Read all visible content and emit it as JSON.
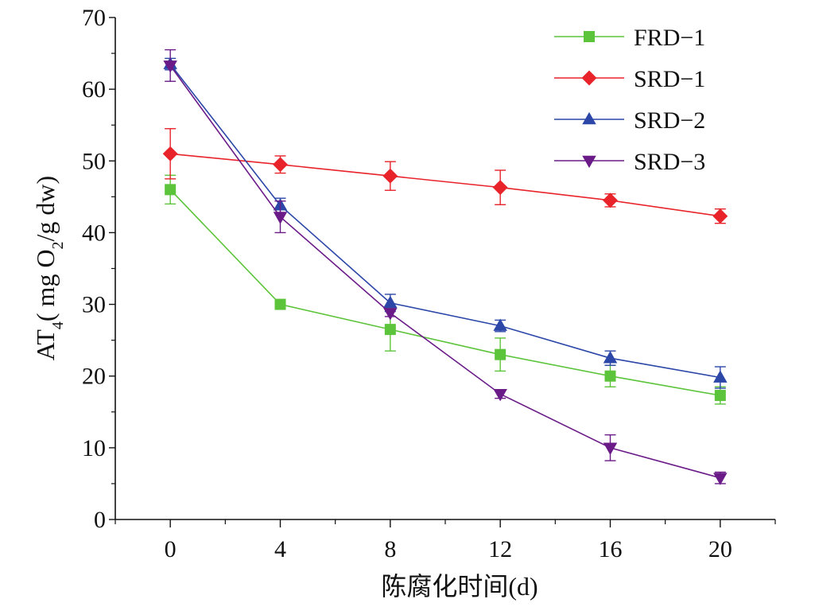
{
  "chart_data": {
    "type": "line",
    "title": "",
    "xlabel": "陈腐化时间(d)",
    "ylabel": {
      "main": "AT",
      "sub": "4",
      "unit_open": "( mg O",
      "unit_sub": "2",
      "unit_close": "/g dw)"
    },
    "x": [
      0,
      4,
      8,
      12,
      16,
      20
    ],
    "xlim": [
      -2,
      22
    ],
    "ylim": [
      0,
      70
    ],
    "xticks": [
      "0",
      "4",
      "8",
      "12",
      "16",
      "20"
    ],
    "yticks": [
      "0",
      "10",
      "20",
      "30",
      "40",
      "50",
      "60",
      "70"
    ],
    "legend_position": "top-right",
    "series": [
      {
        "name": "FRD−1",
        "color": "#5cc43a",
        "marker": "square",
        "values": [
          46,
          30,
          26.5,
          23,
          20,
          17.3
        ],
        "errors": [
          2,
          0.5,
          3,
          2.3,
          1.5,
          1.2
        ]
      },
      {
        "name": "SRD−1",
        "color": "#e8232a",
        "marker": "diamond",
        "values": [
          51,
          49.5,
          47.9,
          46.3,
          44.5,
          42.3
        ],
        "errors": [
          3.5,
          1.2,
          2,
          2.4,
          0.9,
          1
        ]
      },
      {
        "name": "SRD−2",
        "color": "#2c47a8",
        "marker": "triangle-up",
        "values": [
          63.5,
          43.8,
          30.2,
          27,
          22.5,
          19.8
        ],
        "errors": [
          0.8,
          1,
          1.2,
          0.8,
          1,
          1.5
        ]
      },
      {
        "name": "SRD−3",
        "color": "#6a1b88",
        "marker": "triangle-down",
        "values": [
          63.3,
          42.2,
          28.8,
          17.5,
          10,
          5.8
        ],
        "errors": [
          2.2,
          2.2,
          0.5,
          0.6,
          1.8,
          0.8
        ]
      }
    ]
  }
}
